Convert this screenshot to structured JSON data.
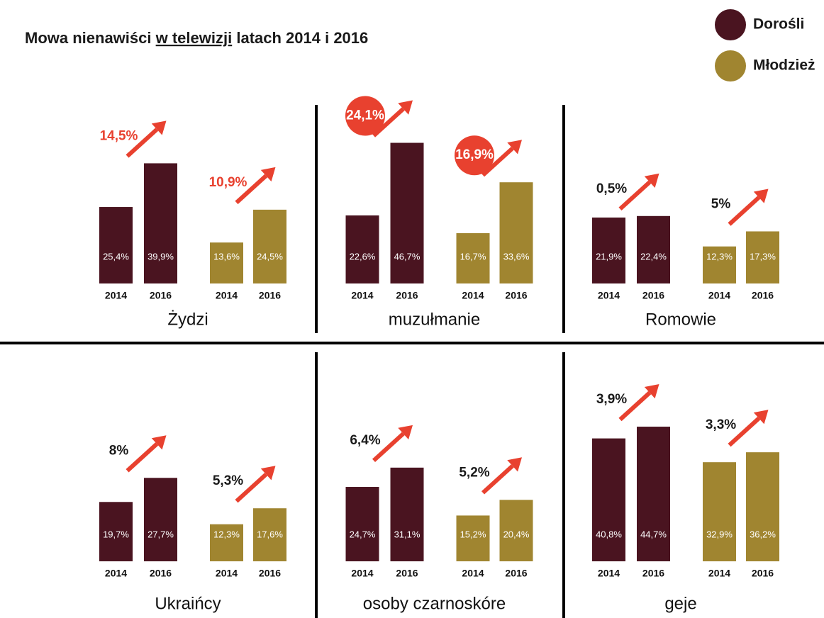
{
  "title_parts": [
    "Mowa nienawiści",
    "w telewizji",
    "latach 2014 i 2016"
  ],
  "chart_data": [
    {
      "type": "bar",
      "title": "Żydzi",
      "categories": [
        "2014",
        "2016"
      ],
      "series": [
        {
          "name": "Dorośli",
          "color": "#4a1420",
          "values": [
            25.4,
            39.9
          ],
          "value_labels": [
            "25,4%",
            "39,9%"
          ]
        },
        {
          "name": "Młodzież",
          "color": "#a08530",
          "values": [
            13.6,
            24.5
          ],
          "value_labels": [
            "13,6%",
            "24,5%"
          ]
        }
      ],
      "annotations": [
        {
          "text": "14,5%",
          "style": "red"
        },
        {
          "text": "10,9%",
          "style": "red"
        }
      ]
    },
    {
      "type": "bar",
      "title": "muzułmanie",
      "categories": [
        "2014",
        "2016"
      ],
      "series": [
        {
          "name": "Dorośli",
          "color": "#4a1420",
          "values": [
            22.6,
            46.7
          ],
          "value_labels": [
            "22,6%",
            "46,7%"
          ]
        },
        {
          "name": "Młodzież",
          "color": "#a08530",
          "values": [
            16.7,
            33.6
          ],
          "value_labels": [
            "16,7%",
            "33,6%"
          ]
        }
      ],
      "annotations": [
        {
          "text": "24,1%",
          "style": "circle"
        },
        {
          "text": "16,9%",
          "style": "circle"
        }
      ]
    },
    {
      "type": "bar",
      "title": "Romowie",
      "categories": [
        "2014",
        "2016"
      ],
      "series": [
        {
          "name": "Dorośli",
          "color": "#4a1420",
          "values": [
            21.9,
            22.4
          ],
          "value_labels": [
            "21,9%",
            "22,4%"
          ]
        },
        {
          "name": "Młodzież",
          "color": "#a08530",
          "values": [
            12.3,
            17.3
          ],
          "value_labels": [
            "12,3%",
            "17,3%"
          ]
        }
      ],
      "annotations": [
        {
          "text": "0,5%",
          "style": "plain"
        },
        {
          "text": "5%",
          "style": "plain"
        }
      ]
    },
    {
      "type": "bar",
      "title": "Ukraińcy",
      "categories": [
        "2014",
        "2016"
      ],
      "series": [
        {
          "name": "Dorośli",
          "color": "#4a1420",
          "values": [
            19.7,
            27.7
          ],
          "value_labels": [
            "19,7%",
            "27,7%"
          ]
        },
        {
          "name": "Młodzież",
          "color": "#a08530",
          "values": [
            12.3,
            17.6
          ],
          "value_labels": [
            "12,3%",
            "17,6%"
          ]
        }
      ],
      "annotations": [
        {
          "text": "8%",
          "style": "plain"
        },
        {
          "text": "5,3%",
          "style": "plain"
        }
      ]
    },
    {
      "type": "bar",
      "title": "osoby czarnoskóre",
      "categories": [
        "2014",
        "2016"
      ],
      "series": [
        {
          "name": "Dorośli",
          "color": "#4a1420",
          "values": [
            24.7,
            31.1
          ],
          "value_labels": [
            "24,7%",
            "31,1%"
          ]
        },
        {
          "name": "Młodzież",
          "color": "#a08530",
          "values": [
            15.2,
            20.4
          ],
          "value_labels": [
            "15,2%",
            "20,4%"
          ]
        }
      ],
      "annotations": [
        {
          "text": "6,4%",
          "style": "plain"
        },
        {
          "text": "5,2%",
          "style": "plain"
        }
      ]
    },
    {
      "type": "bar",
      "title": "geje",
      "categories": [
        "2014",
        "2016"
      ],
      "series": [
        {
          "name": "Dorośli",
          "color": "#4a1420",
          "values": [
            40.8,
            44.7
          ],
          "value_labels": [
            "40,8%",
            "44,7%"
          ]
        },
        {
          "name": "Młodzież",
          "color": "#a08530",
          "values": [
            32.9,
            36.2
          ],
          "value_labels": [
            "32,9%",
            "36,2%"
          ]
        }
      ],
      "annotations": [
        {
          "text": "3,9%",
          "style": "plain"
        },
        {
          "text": "3,3%",
          "style": "plain"
        }
      ]
    }
  ]
}
